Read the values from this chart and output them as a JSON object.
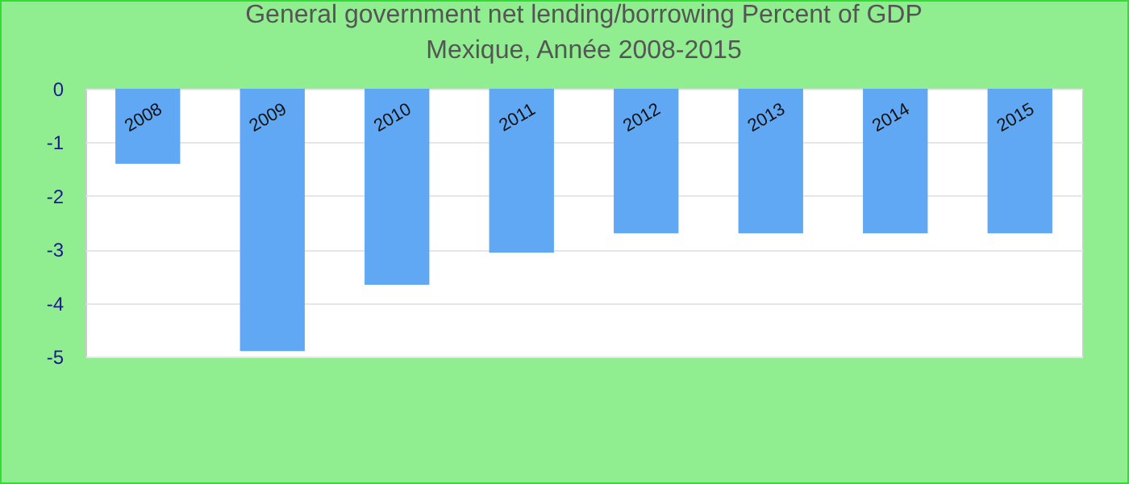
{
  "chart_data": {
    "type": "bar",
    "title": "General government net lending/borrowing  Percent of GDP",
    "subtitle": "Mexique, Année 2008-2015",
    "categories": [
      "2008",
      "2009",
      "2010",
      "2011",
      "2012",
      "2013",
      "2014",
      "2015"
    ],
    "values": [
      -1.4,
      -4.9,
      -3.66,
      -3.06,
      -2.7,
      -2.7,
      -2.7,
      -2.7
    ],
    "color": "#60a8f4",
    "ylim": [
      -5,
      0
    ],
    "yticks": [
      -5,
      -4,
      -3,
      -2,
      -1,
      0
    ],
    "grid": "y"
  }
}
